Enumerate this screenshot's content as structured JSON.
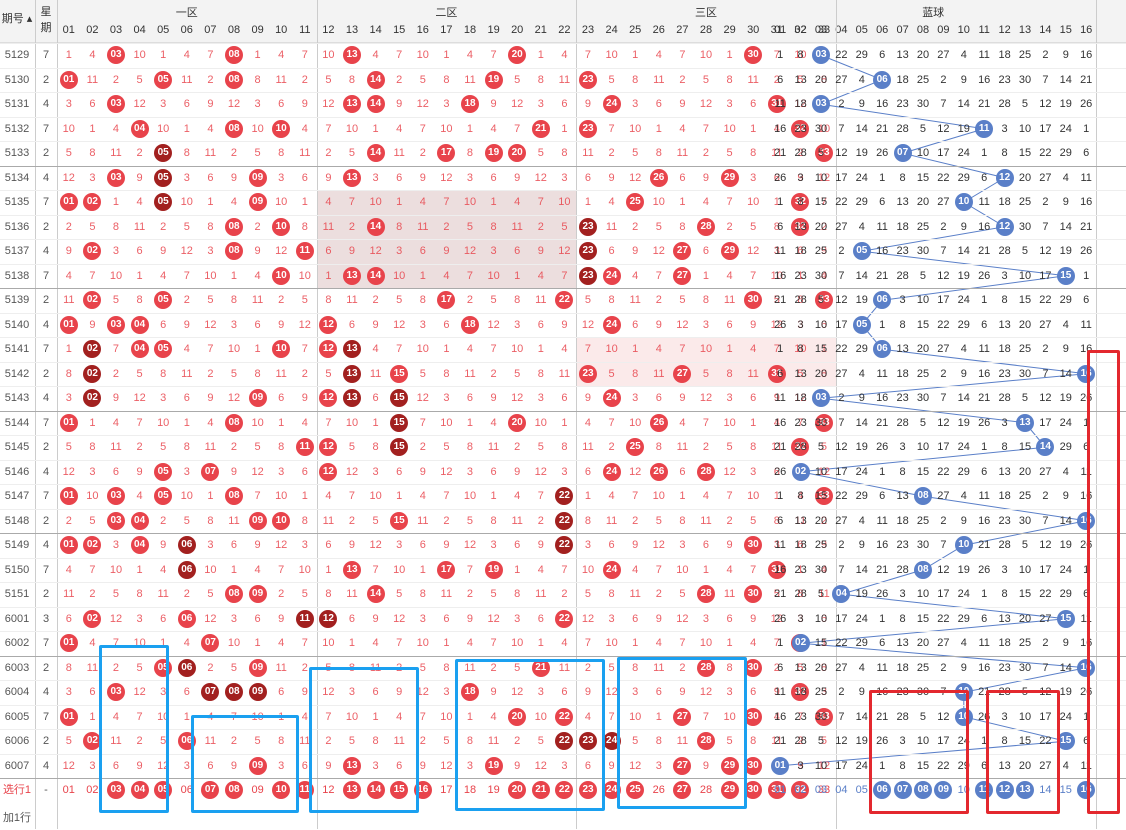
{
  "header": {
    "issue_label": "期号",
    "week_label": "星期",
    "zone_labels": [
      "一区",
      "二区",
      "三区",
      "蓝球"
    ]
  },
  "red_cols": [
    "01",
    "02",
    "03",
    "04",
    "05",
    "06",
    "07",
    "08",
    "09",
    "10",
    "11",
    "12",
    "13",
    "14",
    "15",
    "16",
    "17",
    "18",
    "19",
    "20",
    "21",
    "22",
    "23",
    "24",
    "25",
    "26",
    "27",
    "28",
    "29",
    "30",
    "31",
    "32",
    "33"
  ],
  "blue_cols": [
    "01",
    "02",
    "03",
    "04",
    "05",
    "06",
    "07",
    "08",
    "09",
    "10",
    "11",
    "12",
    "13",
    "14",
    "15",
    "16"
  ],
  "footer": {
    "select_label": "选行1",
    "dash": "-",
    "add_row_label": "加1行",
    "select_balls": [
      "03",
      "04",
      "05",
      "07",
      "08",
      "10",
      "11",
      "13",
      "14",
      "15",
      "16",
      "20",
      "21",
      "22",
      "23",
      "24",
      "25",
      "27",
      "29",
      "30",
      "31",
      "32",
      "06",
      "07",
      "08",
      "09",
      "11",
      "12",
      "13",
      "16"
    ]
  },
  "colors": {
    "red": "#e8434b",
    "dark_red": "#a2201f",
    "blue": "#5a7fc8",
    "box_blue": "#1aa0f0",
    "box_red": "#e3282e"
  },
  "chart_data": {
    "type": "table",
    "title": "",
    "rows": [
      {
        "issue": "5129",
        "week": "7",
        "red": [
          "03",
          "08",
          "13",
          "20",
          "30"
        ],
        "dark": [],
        "blue": "03"
      },
      {
        "issue": "5130",
        "week": "2",
        "red": [
          "01",
          "05",
          "08",
          "14",
          "19",
          "23"
        ],
        "dark": [],
        "blue": "06"
      },
      {
        "issue": "5131",
        "week": "4",
        "red": [
          "03",
          "13",
          "14",
          "18",
          "24",
          "31"
        ],
        "dark": [],
        "blue": "03"
      },
      {
        "issue": "5132",
        "week": "7",
        "red": [
          "04",
          "08",
          "10",
          "21",
          "23",
          "32"
        ],
        "dark": [],
        "blue": "11"
      },
      {
        "issue": "5133",
        "week": "2",
        "red": [
          "14",
          "17",
          "19",
          "20",
          "33"
        ],
        "dark": [
          "05"
        ],
        "blue": "07"
      },
      {
        "issue": "5134",
        "week": "4",
        "red": [
          "03",
          "09",
          "13",
          "26",
          "29"
        ],
        "dark": [
          "05"
        ],
        "blue": "12"
      },
      {
        "issue": "5135",
        "week": "7",
        "red": [
          "01",
          "02",
          "09",
          "25",
          "32"
        ],
        "dark": [
          "05"
        ],
        "blue": "10"
      },
      {
        "issue": "5136",
        "week": "2",
        "red": [
          "08",
          "10",
          "14",
          "28",
          "32"
        ],
        "dark": [
          "23"
        ],
        "blue": "12"
      },
      {
        "issue": "5137",
        "week": "4",
        "red": [
          "02",
          "08",
          "11",
          "27",
          "29"
        ],
        "dark": [
          "23"
        ],
        "blue": "05"
      },
      {
        "issue": "5138",
        "week": "7",
        "red": [
          "10",
          "13",
          "14",
          "24",
          "27"
        ],
        "dark": [
          "23"
        ],
        "blue": "15"
      },
      {
        "issue": "5139",
        "week": "2",
        "red": [
          "02",
          "05",
          "17",
          "22",
          "30",
          "33"
        ],
        "dark": [],
        "blue": "06"
      },
      {
        "issue": "5140",
        "week": "4",
        "red": [
          "01",
          "03",
          "04",
          "12",
          "18",
          "24"
        ],
        "dark": [],
        "blue": "05"
      },
      {
        "issue": "5141",
        "week": "7",
        "red": [
          "04",
          "05",
          "10",
          "12"
        ],
        "dark": [
          "02",
          "13"
        ],
        "blue": "06"
      },
      {
        "issue": "5142",
        "week": "2",
        "red": [
          "15",
          "23",
          "27",
          "31"
        ],
        "dark": [
          "02",
          "13"
        ],
        "blue": "16"
      },
      {
        "issue": "5143",
        "week": "4",
        "red": [
          "09",
          "12",
          "24"
        ],
        "dark": [
          "02",
          "13",
          "15"
        ],
        "blue": "03"
      },
      {
        "issue": "5144",
        "week": "7",
        "red": [
          "01",
          "08",
          "20",
          "26",
          "33"
        ],
        "dark": [
          "15"
        ],
        "blue": "13"
      },
      {
        "issue": "5145",
        "week": "2",
        "red": [
          "11",
          "12",
          "25",
          "32"
        ],
        "dark": [
          "15"
        ],
        "blue": "14"
      },
      {
        "issue": "5146",
        "week": "4",
        "red": [
          "05",
          "07",
          "12",
          "24",
          "26",
          "28"
        ],
        "dark": [],
        "blue": "02"
      },
      {
        "issue": "5147",
        "week": "7",
        "red": [
          "01",
          "03",
          "05",
          "08",
          "33"
        ],
        "dark": [
          "22"
        ],
        "blue": "08"
      },
      {
        "issue": "5148",
        "week": "2",
        "red": [
          "03",
          "04",
          "09",
          "10",
          "15"
        ],
        "dark": [
          "22"
        ],
        "blue": "16"
      },
      {
        "issue": "5149",
        "week": "4",
        "red": [
          "01",
          "02",
          "04",
          "30"
        ],
        "dark": [
          "06",
          "22"
        ],
        "blue": "10"
      },
      {
        "issue": "5150",
        "week": "7",
        "red": [
          "13",
          "17",
          "19",
          "24",
          "31"
        ],
        "dark": [
          "06"
        ],
        "blue": "08"
      },
      {
        "issue": "5151",
        "week": "2",
        "red": [
          "08",
          "09",
          "14",
          "28",
          "30"
        ],
        "dark": [],
        "blue": "04"
      },
      {
        "issue": "6001",
        "week": "3",
        "red": [
          "02",
          "06",
          "22"
        ],
        "dark": [
          "11",
          "12"
        ],
        "blue": "15"
      },
      {
        "issue": "6002",
        "week": "7",
        "red": [
          "01",
          "07",
          "32"
        ],
        "dark": [],
        "blue": "02"
      },
      {
        "issue": "6003",
        "week": "2",
        "red": [
          "05",
          "09",
          "21",
          "28",
          "30"
        ],
        "dark": [
          "06"
        ],
        "blue": "16"
      },
      {
        "issue": "6004",
        "week": "4",
        "red": [
          "03",
          "18",
          "32"
        ],
        "dark": [
          "07",
          "08",
          "09"
        ],
        "blue": "10"
      },
      {
        "issue": "6005",
        "week": "7",
        "red": [
          "01",
          "20",
          "22",
          "27",
          "30",
          "33"
        ],
        "dark": [],
        "blue": "10"
      },
      {
        "issue": "6006",
        "week": "2",
        "red": [
          "02",
          "06",
          "28"
        ],
        "dark": [
          "22",
          "23",
          "24"
        ],
        "blue": "15"
      },
      {
        "issue": "6007",
        "week": "4",
        "red": [
          "09",
          "13",
          "19",
          "27",
          "29",
          "30"
        ],
        "dark": [],
        "blue": "01"
      }
    ]
  }
}
